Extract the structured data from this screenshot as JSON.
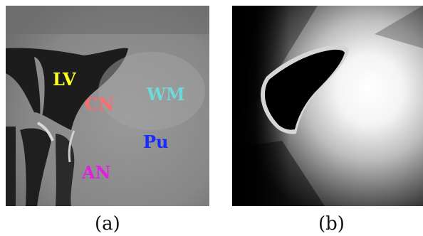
{
  "panel_a": {
    "caption": "(a)",
    "labels": [
      {
        "text": "LV",
        "color": "#ffff22"
      },
      {
        "text": "CN",
        "color": "#ff6b6b"
      },
      {
        "text": "WM",
        "color": "#6fd8d8"
      },
      {
        "text": "Pu",
        "color": "#1a2bff"
      },
      {
        "text": "AN",
        "color": "#e020e0"
      }
    ]
  },
  "panel_b": {
    "caption": "(b)"
  }
}
